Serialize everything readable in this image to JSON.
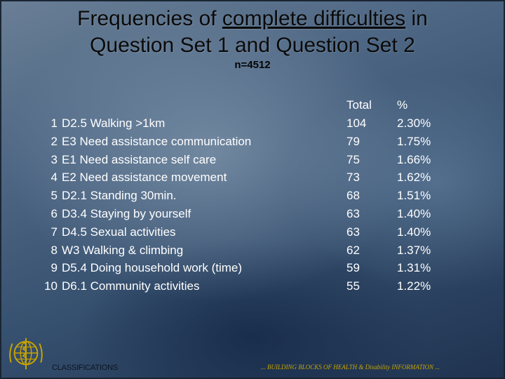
{
  "title": {
    "before": "Frequencies of ",
    "underlined": "complete difficulties",
    "after": " in",
    "line2": "Question Set 1 and Question Set 2"
  },
  "subtitle": "n=4512",
  "table": {
    "headers": {
      "total": "Total",
      "percent": "%"
    },
    "rows": [
      {
        "num": "1",
        "item": "D2.5 Walking >1km",
        "total": "104",
        "percent": "2.30%"
      },
      {
        "num": "2",
        "item": "E3 Need assistance communication",
        "total": "79",
        "percent": "1.75%"
      },
      {
        "num": "3",
        "item": "E1 Need assistance self care",
        "total": "75",
        "percent": "1.66%"
      },
      {
        "num": "4",
        "item": "E2 Need assistance movement",
        "total": "73",
        "percent": "1.62%"
      },
      {
        "num": "5",
        "item": "D2.1 Standing 30min.",
        "total": "68",
        "percent": "1.51%"
      },
      {
        "num": "6",
        "item": "D3.4 Staying by yourself",
        "total": "63",
        "percent": "1.40%"
      },
      {
        "num": "7",
        "item": "D4.5 Sexual activities",
        "total": "63",
        "percent": "1.40%"
      },
      {
        "num": "8",
        "item": "W3 Walking & climbing",
        "total": "62",
        "percent": "1.37%"
      },
      {
        "num": "9",
        "item": "D5.4 Doing household work (time)",
        "total": "59",
        "percent": "1.31%"
      },
      {
        "num": "10",
        "item": "D6.1 Community activities",
        "total": "55",
        "percent": "1.22%"
      }
    ]
  },
  "footer": {
    "left": "CLASSIFICATIONS",
    "right": "... BUILDING BLOCKS OF HEALTH & Disability INFORMATION ..."
  },
  "logo_icon": "who-emblem-icon"
}
